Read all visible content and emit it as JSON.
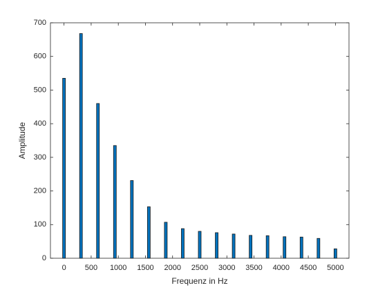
{
  "chart_data": {
    "type": "bar",
    "x_label": "Frequenz in Hz",
    "y_label": "Amplitude",
    "x": [
      0,
      312.5,
      625,
      937.5,
      1250,
      1562.5,
      1875,
      2187.5,
      2500,
      2812.5,
      3125,
      3437.5,
      3750,
      4062.5,
      4375,
      4687.5,
      5000
    ],
    "values": [
      535,
      668,
      460,
      335,
      231,
      153,
      107,
      88,
      80,
      76,
      72,
      68,
      67,
      64,
      63,
      59,
      28
    ],
    "color": "#0072bd",
    "edge_color": "#1a1a1a",
    "xlim": [
      -250,
      5250
    ],
    "xticks": [
      0,
      500,
      1000,
      1500,
      2000,
      2500,
      3000,
      3500,
      4000,
      4500,
      5000
    ],
    "ylim": [
      0,
      700
    ],
    "yticks": [
      0,
      100,
      200,
      300,
      400,
      500,
      600,
      700
    ]
  }
}
